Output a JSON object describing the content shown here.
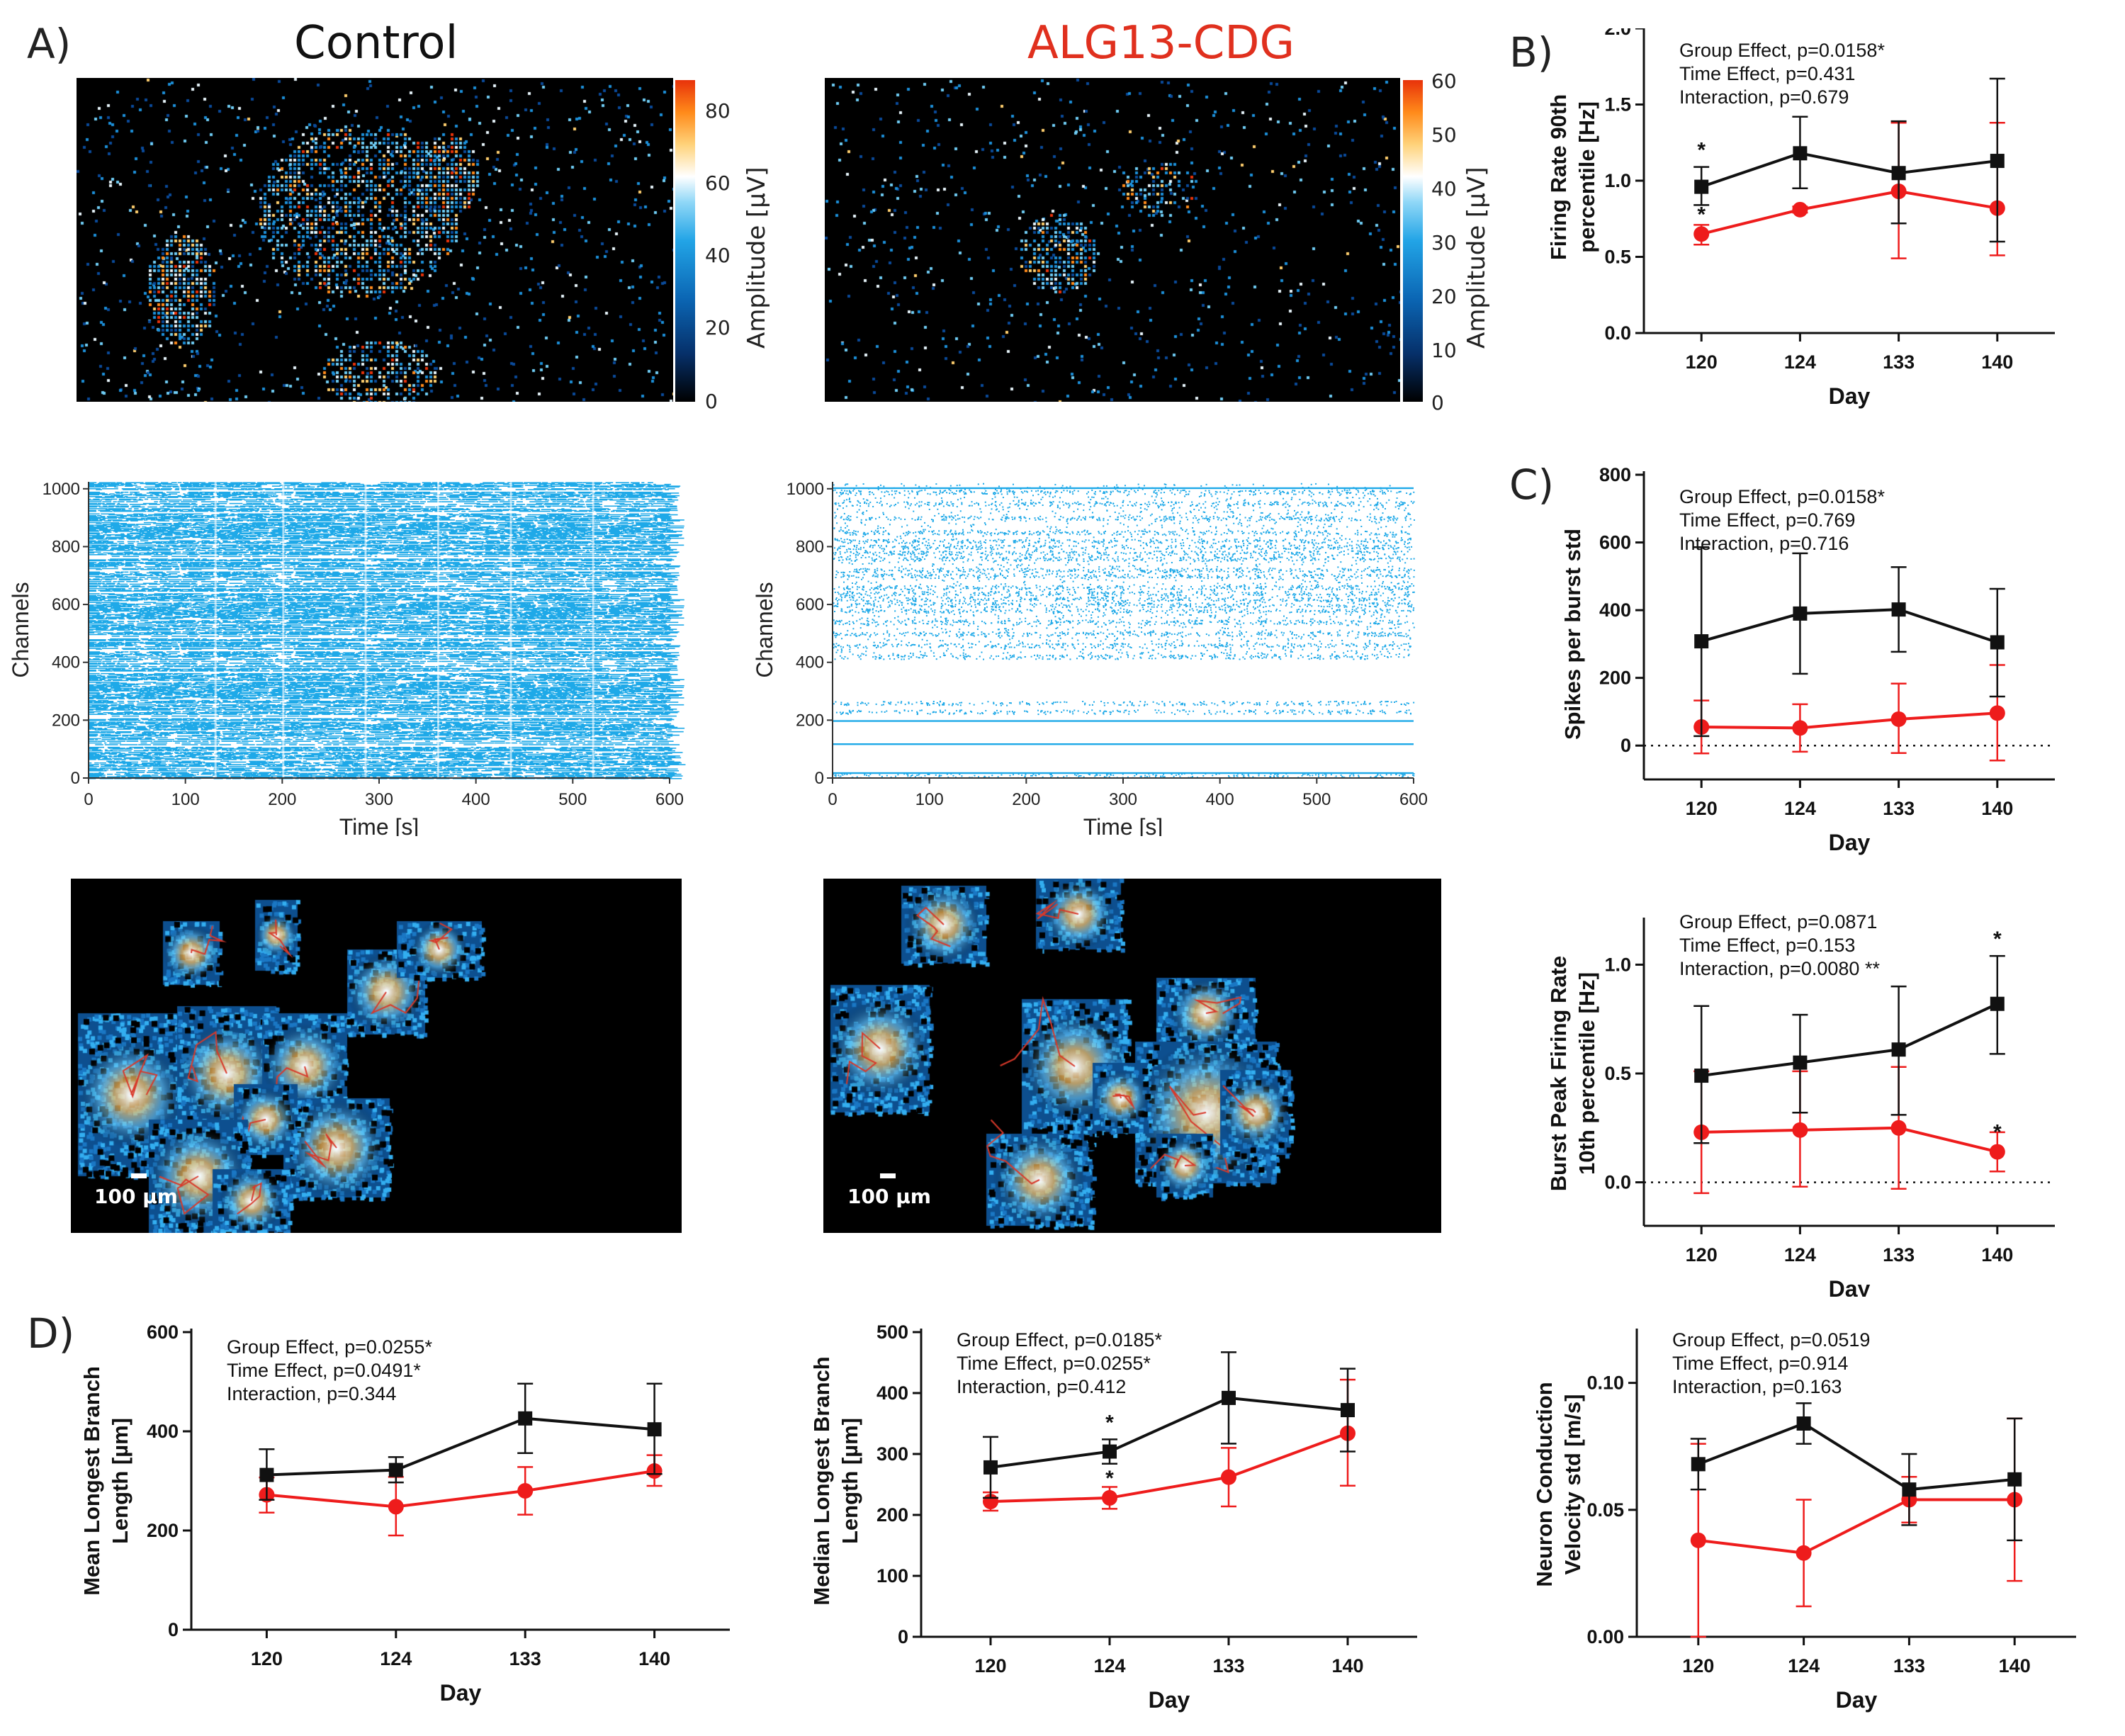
{
  "panel_letters": {
    "a": "A)",
    "b": "B)",
    "c": "C)",
    "d": "D)"
  },
  "titles": {
    "control": "Control",
    "alg13": "ALG13-CDG",
    "alg13_color": "#e0301e"
  },
  "amplitude_maps": [
    {
      "id": "control",
      "colorbar_label": "Amplitude [µV]",
      "colorbar_ticks": [
        "80",
        "60",
        "40",
        "20",
        "0"
      ]
    },
    {
      "id": "alg13",
      "colorbar_label": "Amplitude [µV]",
      "colorbar_ticks": [
        "60",
        "50",
        "40",
        "30",
        "20",
        "10",
        "0"
      ]
    }
  ],
  "scale_bar_label": "100 µm",
  "colors": {
    "control": "#111111",
    "alg13": "#ee1c1c",
    "raster": "#1ea9e8"
  },
  "chart_data": [
    {
      "id": "raster-control",
      "type": "scatter",
      "xlabel": "Time [s]",
      "ylabel": "Channels",
      "xlim": [
        0,
        600
      ],
      "ylim": [
        0,
        1024
      ],
      "xticks": [
        "0",
        "100",
        "200",
        "300",
        "400",
        "500",
        "600"
      ],
      "yticks": [
        "0",
        "200",
        "400",
        "600",
        "800",
        "1000"
      ]
    },
    {
      "id": "raster-alg13",
      "type": "scatter",
      "xlabel": "Time [s]",
      "ylabel": "Channels",
      "xlim": [
        0,
        600
      ],
      "ylim": [
        0,
        1024
      ],
      "xticks": [
        "0",
        "100",
        "200",
        "300",
        "400",
        "500",
        "600"
      ],
      "yticks": [
        "0",
        "200",
        "400",
        "600",
        "800",
        "1000"
      ]
    },
    {
      "id": "firing-rate-90",
      "type": "line",
      "ylabel_lines": [
        "Firing Rate 90th",
        "percentile [Hz]"
      ],
      "xlabel": "Day",
      "categories": [
        "120",
        "124",
        "133",
        "140"
      ],
      "ylim": [
        0,
        2.0
      ],
      "yticks": [
        "0.0",
        "0.5",
        "1.0",
        "1.5",
        "2.0"
      ],
      "zero_line": false,
      "stats": [
        "Group Effect, p=0.0158*",
        "Time Effect, p=0.431",
        "Interaction, p=0.679"
      ],
      "series": [
        {
          "name": "Control",
          "values": [
            0.96,
            1.18,
            1.05,
            1.13
          ],
          "err_up": [
            0.13,
            0.24,
            0.34,
            0.54
          ],
          "err_down": [
            0.12,
            0.23,
            0.33,
            0.53
          ],
          "stars": [
            "*",
            "",
            "",
            ""
          ]
        },
        {
          "name": "ALG13-CDG",
          "values": [
            0.65,
            0.81,
            0.93,
            0.82
          ],
          "err_up": [
            0.06,
            0.02,
            0.45,
            0.56
          ],
          "err_down": [
            0.07,
            0.02,
            0.44,
            0.31
          ],
          "stars": [
            "*",
            "",
            "",
            ""
          ]
        }
      ]
    },
    {
      "id": "spikes-per-burst-std",
      "type": "line",
      "ylabel_lines": [
        "Spikes per burst std"
      ],
      "xlabel": "Day",
      "categories": [
        "120",
        "124",
        "133",
        "140"
      ],
      "ylim": [
        -100,
        800
      ],
      "yticks": [
        "0",
        "200",
        "400",
        "600",
        "800"
      ],
      "ytick_values": [
        0,
        200,
        400,
        600,
        800
      ],
      "zero_line": true,
      "stats": [
        "Group Effect, p=0.0158*",
        "Time Effect, p=0.769",
        "Interaction, p=0.716"
      ],
      "series": [
        {
          "name": "Control",
          "values": [
            308,
            390,
            402,
            305
          ],
          "err_up": [
            278,
            178,
            125,
            158
          ],
          "err_down": [
            280,
            178,
            125,
            160
          ],
          "stars": [
            "",
            "",
            "",
            ""
          ]
        },
        {
          "name": "ALG13-CDG",
          "values": [
            55,
            52,
            78,
            96
          ],
          "err_up": [
            78,
            70,
            105,
            142
          ],
          "err_down": [
            78,
            70,
            100,
            140
          ],
          "stars": [
            "",
            "",
            "",
            ""
          ]
        }
      ]
    },
    {
      "id": "burst-peak-firing-rate",
      "type": "line",
      "ylabel_lines": [
        "Burst Peak Firing Rate",
        "10th percentile [Hz]"
      ],
      "xlabel": "Day",
      "categories": [
        "120",
        "124",
        "133",
        "140"
      ],
      "ylim": [
        -0.2,
        1.2
      ],
      "yticks": [
        "0.0",
        "0.5",
        "1.0"
      ],
      "ytick_values": [
        0,
        0.5,
        1.0
      ],
      "zero_line": true,
      "stats": [
        "Group Effect, p=0.0871",
        "Time Effect, p=0.153",
        "Interaction, p=0.0080 **"
      ],
      "series": [
        {
          "name": "Control",
          "values": [
            0.49,
            0.55,
            0.61,
            0.82
          ],
          "err_up": [
            0.32,
            0.22,
            0.29,
            0.22
          ],
          "err_down": [
            0.31,
            0.23,
            0.3,
            0.23
          ],
          "stars": [
            "",
            "",
            "",
            "*"
          ]
        },
        {
          "name": "ALG13-CDG",
          "values": [
            0.23,
            0.24,
            0.25,
            0.14
          ],
          "err_up": [
            0.28,
            0.27,
            0.28,
            0.09
          ],
          "err_down": [
            0.28,
            0.26,
            0.28,
            0.09
          ],
          "stars": [
            "",
            "",
            "",
            "*"
          ]
        }
      ]
    },
    {
      "id": "mean-longest-branch",
      "type": "line",
      "ylabel_lines": [
        "Mean Longest Branch",
        "Length [µm]"
      ],
      "xlabel": "Day",
      "categories": [
        "120",
        "124",
        "133",
        "140"
      ],
      "ylim": [
        0,
        600
      ],
      "yticks": [
        "0",
        "200",
        "400",
        "600"
      ],
      "zero_line": false,
      "stats": [
        "Group Effect, p=0.0255*",
        "Time Effect, p=0.0491*",
        "Interaction, p=0.344"
      ],
      "series": [
        {
          "name": "Control",
          "values": [
            312,
            322,
            426,
            404
          ],
          "err_up": [
            52,
            26,
            70,
            92
          ],
          "err_down": [
            50,
            25,
            70,
            90
          ],
          "stars": [
            "",
            "",
            "",
            ""
          ]
        },
        {
          "name": "ALG13-CDG",
          "values": [
            272,
            248,
            280,
            320
          ],
          "err_up": [
            35,
            60,
            48,
            32
          ],
          "err_down": [
            36,
            58,
            48,
            30
          ],
          "stars": [
            "",
            "",
            "",
            ""
          ]
        }
      ]
    },
    {
      "id": "median-longest-branch",
      "type": "line",
      "ylabel_lines": [
        "Median Longest Branch",
        "Length [µm]"
      ],
      "xlabel": "Day",
      "categories": [
        "120",
        "124",
        "133",
        "140"
      ],
      "ylim": [
        0,
        500
      ],
      "yticks": [
        "0",
        "100",
        "200",
        "300",
        "400",
        "500"
      ],
      "zero_line": false,
      "stats": [
        "Group Effect, p=0.0185*",
        "Time Effect, p=0.0255*",
        "Interaction, p=0.412"
      ],
      "series": [
        {
          "name": "Control",
          "values": [
            278,
            304,
            392,
            372
          ],
          "err_up": [
            50,
            20,
            75,
            68
          ],
          "err_down": [
            50,
            20,
            75,
            68
          ],
          "stars": [
            "",
            "*",
            "",
            ""
          ]
        },
        {
          "name": "ALG13-CDG",
          "values": [
            222,
            228,
            262,
            334
          ],
          "err_up": [
            15,
            18,
            48,
            88
          ],
          "err_down": [
            15,
            18,
            48,
            86
          ],
          "stars": [
            "",
            "*",
            "",
            ""
          ]
        }
      ]
    },
    {
      "id": "neuron-conduction-velocity",
      "type": "line",
      "ylabel_lines": [
        "Neuron Conduction",
        "Velocity std [m/s]"
      ],
      "xlabel": "Day",
      "categories": [
        "120",
        "124",
        "133",
        "140"
      ],
      "ylim": [
        0,
        0.12
      ],
      "yticks": [
        "0.00",
        "0.05",
        "0.10"
      ],
      "ytick_values": [
        0,
        0.05,
        0.1
      ],
      "zero_line": false,
      "stats": [
        "Group Effect, p=0.0519",
        "Time Effect, p=0.914",
        "Interaction, p=0.163"
      ],
      "series": [
        {
          "name": "Control",
          "values": [
            0.068,
            0.084,
            0.058,
            0.062
          ],
          "err_up": [
            0.01,
            0.008,
            0.014,
            0.024
          ],
          "err_down": [
            0.01,
            0.008,
            0.014,
            0.024
          ],
          "stars": [
            "",
            "",
            "",
            ""
          ]
        },
        {
          "name": "ALG13-CDG",
          "values": [
            0.038,
            0.033,
            0.054,
            0.054
          ],
          "err_up": [
            0.038,
            0.021,
            0.009,
            0.032
          ],
          "err_down": [
            0.038,
            0.021,
            0.009,
            0.032
          ],
          "stars": [
            "",
            "",
            "",
            ""
          ]
        }
      ]
    }
  ]
}
